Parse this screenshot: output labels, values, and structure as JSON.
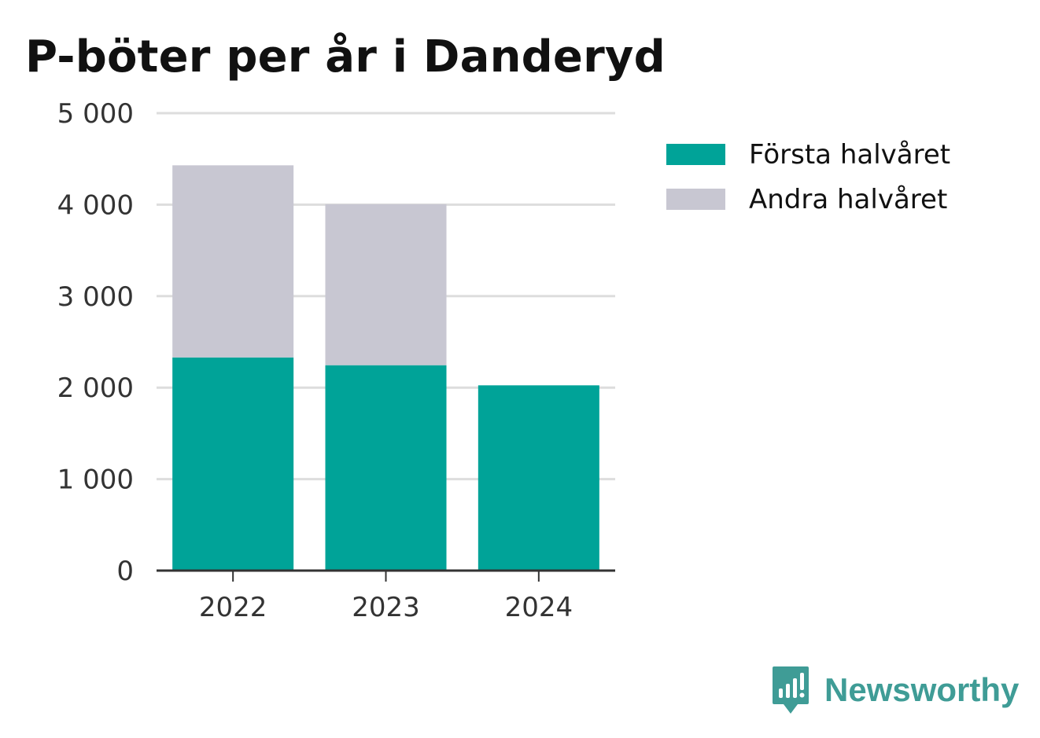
{
  "colors": {
    "first_half": "#00a398",
    "second_half": "#c8c7d2",
    "grid": "#dddddd",
    "axis": "#333333",
    "brand": "#3f9c96"
  },
  "chart_data": {
    "type": "bar",
    "stacked": true,
    "title": "P-böter per år i Danderyd",
    "categories": [
      "2022",
      "2023",
      "2024"
    ],
    "series": [
      {
        "name": "Första halvåret",
        "values": [
          2330,
          2245,
          2025
        ]
      },
      {
        "name": "Andra halvåret",
        "values": [
          2100,
          1760,
          0
        ]
      }
    ],
    "ylim": [
      0,
      5000
    ],
    "yticks": [
      0,
      1000,
      2000,
      3000,
      4000,
      5000
    ],
    "ytick_labels": [
      "0",
      "1 000",
      "2 000",
      "3 000",
      "4 000",
      "5 000"
    ],
    "grid": true,
    "legend_position": "right"
  },
  "legend": {
    "items": [
      {
        "label": "Första halvåret",
        "color_key": "first_half"
      },
      {
        "label": "Andra halvåret",
        "color_key": "second_half"
      }
    ]
  },
  "brand": {
    "name": "Newsworthy",
    "icon": "newsworthy-logo-icon"
  }
}
